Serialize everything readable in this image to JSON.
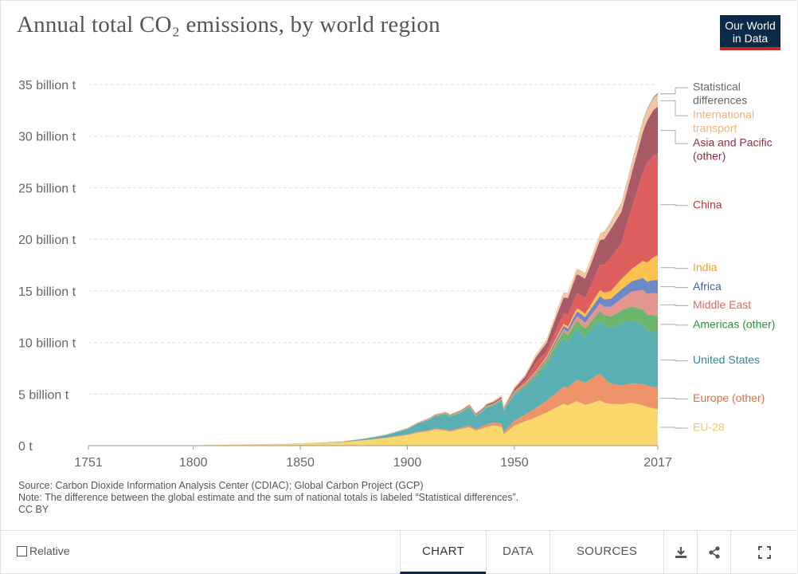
{
  "header": {
    "title": "Annual total CO₂ emissions, by world region",
    "logo_line1": "Our World",
    "logo_line2": "in Data"
  },
  "colors": {
    "eu28": "#fbd86b",
    "europe_other": "#ef946a",
    "united_states": "#5aafb3",
    "americas_other": "#6cb56c",
    "middle_east": "#e4958f",
    "africa": "#6d88c6",
    "india": "#fbc24f",
    "china": "#df5f5f",
    "asia_pacific_other": "#a85a66",
    "international_transport": "#f3c6a1",
    "statistical_differences": "#9a9a9a",
    "brand_navy": "#0b2a4a",
    "brand_red": "#ce261e"
  },
  "chart_data": {
    "type": "area",
    "stacked": true,
    "title": "Annual total CO₂ emissions, by world region",
    "unit": "billion t",
    "x": [
      1751,
      1800,
      1850,
      1870,
      1880,
      1890,
      1900,
      1905,
      1910,
      1913,
      1918,
      1920,
      1925,
      1929,
      1932,
      1935,
      1937,
      1940,
      1944,
      1945,
      1950,
      1955,
      1960,
      1965,
      1970,
      1973,
      1975,
      1979,
      1980,
      1983,
      1985,
      1990,
      1992,
      1995,
      2000,
      2005,
      2010,
      2012,
      2015,
      2017
    ],
    "series": [
      {
        "name": "EU-28",
        "color_key": "eu28",
        "values": [
          0.01,
          0.03,
          0.19,
          0.34,
          0.51,
          0.73,
          1.02,
          1.25,
          1.38,
          1.55,
          1.45,
          1.35,
          1.6,
          1.78,
          1.43,
          1.65,
          1.8,
          1.95,
          1.85,
          1.1,
          1.95,
          2.35,
          2.75,
          3.2,
          3.75,
          4.05,
          3.9,
          4.3,
          4.25,
          3.95,
          4.05,
          4.4,
          4.15,
          4.05,
          4.0,
          4.15,
          3.9,
          3.75,
          3.6,
          3.55
        ]
      },
      {
        "name": "Europe (other)",
        "color_key": "europe_other",
        "values": [
          0,
          0,
          0.01,
          0.02,
          0.03,
          0.05,
          0.08,
          0.1,
          0.12,
          0.14,
          0.12,
          0.11,
          0.14,
          0.17,
          0.16,
          0.22,
          0.27,
          0.3,
          0.3,
          0.2,
          0.45,
          0.65,
          0.9,
          1.15,
          1.45,
          1.65,
          1.75,
          2.05,
          2.1,
          2.15,
          2.3,
          2.6,
          2.35,
          1.95,
          1.85,
          1.9,
          2.05,
          2.1,
          2.05,
          2.1
        ]
      },
      {
        "name": "United States",
        "color_key": "united_states",
        "values": [
          0,
          0,
          0.01,
          0.05,
          0.13,
          0.25,
          0.5,
          0.8,
          1.0,
          1.15,
          1.5,
          1.35,
          1.45,
          1.75,
          1.25,
          1.4,
          1.6,
          1.6,
          2.2,
          2.05,
          2.5,
          2.6,
          2.9,
          3.4,
          4.3,
          4.75,
          4.4,
          4.95,
          4.8,
          4.45,
          4.65,
          5.1,
          5.15,
          5.4,
          6.0,
          6.1,
          5.75,
          5.3,
          5.4,
          5.3
        ]
      },
      {
        "name": "Americas (other)",
        "color_key": "americas_other",
        "values": [
          0,
          0,
          0,
          0,
          0.01,
          0.01,
          0.02,
          0.03,
          0.04,
          0.05,
          0.05,
          0.05,
          0.06,
          0.07,
          0.06,
          0.07,
          0.08,
          0.08,
          0.09,
          0.1,
          0.15,
          0.2,
          0.3,
          0.4,
          0.5,
          0.6,
          0.65,
          0.75,
          0.8,
          0.8,
          0.85,
          0.95,
          1.0,
          1.1,
          1.25,
          1.35,
          1.5,
          1.55,
          1.6,
          1.6
        ]
      },
      {
        "name": "Middle East",
        "color_key": "middle_east",
        "values": [
          0,
          0,
          0,
          0,
          0,
          0,
          0,
          0,
          0,
          0,
          0,
          0,
          0.01,
          0.01,
          0.01,
          0.01,
          0.01,
          0.01,
          0.02,
          0.02,
          0.04,
          0.06,
          0.09,
          0.13,
          0.2,
          0.26,
          0.3,
          0.45,
          0.5,
          0.55,
          0.6,
          0.75,
          0.8,
          0.95,
          1.15,
          1.45,
          1.9,
          2.0,
          2.15,
          2.2
        ]
      },
      {
        "name": "Africa",
        "color_key": "africa",
        "values": [
          0,
          0,
          0,
          0,
          0,
          0,
          0.01,
          0.01,
          0.02,
          0.02,
          0.02,
          0.02,
          0.03,
          0.03,
          0.03,
          0.04,
          0.04,
          0.04,
          0.05,
          0.05,
          0.08,
          0.11,
          0.15,
          0.2,
          0.27,
          0.3,
          0.33,
          0.45,
          0.5,
          0.55,
          0.6,
          0.7,
          0.72,
          0.78,
          0.9,
          1.0,
          1.15,
          1.2,
          1.25,
          1.3
        ]
      },
      {
        "name": "India",
        "color_key": "india",
        "values": [
          0,
          0,
          0,
          0.01,
          0.01,
          0.01,
          0.02,
          0.02,
          0.02,
          0.03,
          0.03,
          0.03,
          0.03,
          0.03,
          0.03,
          0.03,
          0.03,
          0.04,
          0.04,
          0.04,
          0.07,
          0.09,
          0.12,
          0.16,
          0.18,
          0.2,
          0.22,
          0.28,
          0.3,
          0.34,
          0.38,
          0.58,
          0.64,
          0.75,
          1.0,
          1.2,
          1.65,
          1.85,
          2.2,
          2.4
        ]
      },
      {
        "name": "China",
        "color_key": "china",
        "values": [
          0,
          0,
          0,
          0,
          0,
          0,
          0.01,
          0.01,
          0.02,
          0.02,
          0.02,
          0.02,
          0.02,
          0.03,
          0.03,
          0.03,
          0.04,
          0.04,
          0.05,
          0.03,
          0.08,
          0.3,
          0.8,
          0.5,
          0.8,
          1.0,
          1.15,
          1.5,
          1.45,
          1.5,
          1.75,
          2.45,
          2.7,
          3.25,
          3.5,
          6.0,
          8.6,
          9.65,
          9.9,
          9.8
        ]
      },
      {
        "name": "Asia and Pacific (other)",
        "color_key": "asia_pacific_other",
        "values": [
          0,
          0,
          0,
          0,
          0,
          0.01,
          0.02,
          0.02,
          0.03,
          0.04,
          0.04,
          0.05,
          0.06,
          0.08,
          0.08,
          0.1,
          0.12,
          0.15,
          0.13,
          0.05,
          0.2,
          0.32,
          0.55,
          0.8,
          1.3,
          1.55,
          1.6,
          1.85,
          1.85,
          1.9,
          2.0,
          2.4,
          2.5,
          2.75,
          3.0,
          3.4,
          3.9,
          4.1,
          4.4,
          4.6
        ]
      },
      {
        "name": "International transport",
        "color_key": "international_transport",
        "values": [
          0,
          0,
          0,
          0.01,
          0.01,
          0.02,
          0.04,
          0.05,
          0.06,
          0.07,
          0.06,
          0.07,
          0.08,
          0.09,
          0.09,
          0.1,
          0.1,
          0.12,
          0.15,
          0.14,
          0.18,
          0.22,
          0.3,
          0.36,
          0.48,
          0.52,
          0.52,
          0.56,
          0.56,
          0.56,
          0.58,
          0.65,
          0.66,
          0.7,
          0.8,
          0.9,
          1.0,
          1.05,
          1.1,
          1.15
        ]
      },
      {
        "name": "Statistical differences",
        "color_key": "statistical_differences",
        "values": [
          0,
          0,
          0,
          0,
          0,
          0,
          0,
          0,
          0,
          0,
          0,
          0,
          0,
          0,
          0,
          0,
          0,
          0,
          0,
          0,
          0,
          0,
          0,
          0,
          0,
          0,
          0,
          0,
          0,
          0,
          0,
          0,
          0.05,
          0.05,
          0.08,
          0.1,
          0.12,
          0.12,
          0.15,
          0.2
        ]
      }
    ],
    "legend_labels": [
      {
        "lines": [
          "Statistical",
          "differences"
        ],
        "color_key": "statistical_differences",
        "text_color": "#666666"
      },
      {
        "lines": [
          "International",
          "transport"
        ],
        "color_key": "international_transport",
        "text_color": "#f1b27c"
      },
      {
        "lines": [
          "Asia and Pacific",
          "(other)"
        ],
        "color_key": "asia_pacific_other",
        "text_color": "#8f2d3f"
      },
      {
        "lines": [
          "China"
        ],
        "color_key": "china",
        "text_color": "#c6302c"
      },
      {
        "lines": [
          "India"
        ],
        "color_key": "india",
        "text_color": "#f2a31b"
      },
      {
        "lines": [
          "Africa"
        ],
        "color_key": "africa",
        "text_color": "#3e5ca8"
      },
      {
        "lines": [
          "Middle East"
        ],
        "color_key": "middle_east",
        "text_color": "#d86a62"
      },
      {
        "lines": [
          "Americas (other)"
        ],
        "color_key": "americas_other",
        "text_color": "#2f8d3a"
      },
      {
        "lines": [
          "United States"
        ],
        "color_key": "united_states",
        "text_color": "#2e8a8e"
      },
      {
        "lines": [
          "Europe (other)"
        ],
        "color_key": "europe_other",
        "text_color": "#e36d3a"
      },
      {
        "lines": [
          "EU-28"
        ],
        "color_key": "eu28",
        "text_color": "#f3cc4a"
      }
    ],
    "y_ticks": [
      {
        "value": 0,
        "label": "0 t"
      },
      {
        "value": 5,
        "label": "5 billion t"
      },
      {
        "value": 10,
        "label": "10 billion t"
      },
      {
        "value": 15,
        "label": "15 billion t"
      },
      {
        "value": 20,
        "label": "20 billion t"
      },
      {
        "value": 25,
        "label": "25 billion t"
      },
      {
        "value": 30,
        "label": "30 billion t"
      },
      {
        "value": 35,
        "label": "35 billion t"
      }
    ],
    "x_ticks": [
      {
        "value": 1751,
        "label": "1751"
      },
      {
        "value": 1800,
        "label": "1800"
      },
      {
        "value": 1850,
        "label": "1850"
      },
      {
        "value": 1900,
        "label": "1900"
      },
      {
        "value": 1950,
        "label": "1950"
      },
      {
        "value": 2017,
        "label": "2017"
      }
    ],
    "xlim": [
      1751,
      2017
    ],
    "ylim": [
      0,
      35
    ],
    "grid": "horizontal-dashed",
    "legend": "right"
  },
  "notes": {
    "source": "Source: Carbon Dioxide Information Analysis Center (CDIAC); Global Carbon Project (GCP)",
    "note": "Note: The difference between the global estimate and the sum of national totals is labeled “Statistical differences”.",
    "license": "CC BY"
  },
  "footer": {
    "relative_label": "Relative",
    "tabs": [
      {
        "label": "CHART",
        "active": true
      },
      {
        "label": "DATA",
        "active": false
      },
      {
        "label": "SOURCES",
        "active": false
      }
    ],
    "icons": [
      "download-icon",
      "share-icon",
      "fullscreen-icon"
    ]
  }
}
